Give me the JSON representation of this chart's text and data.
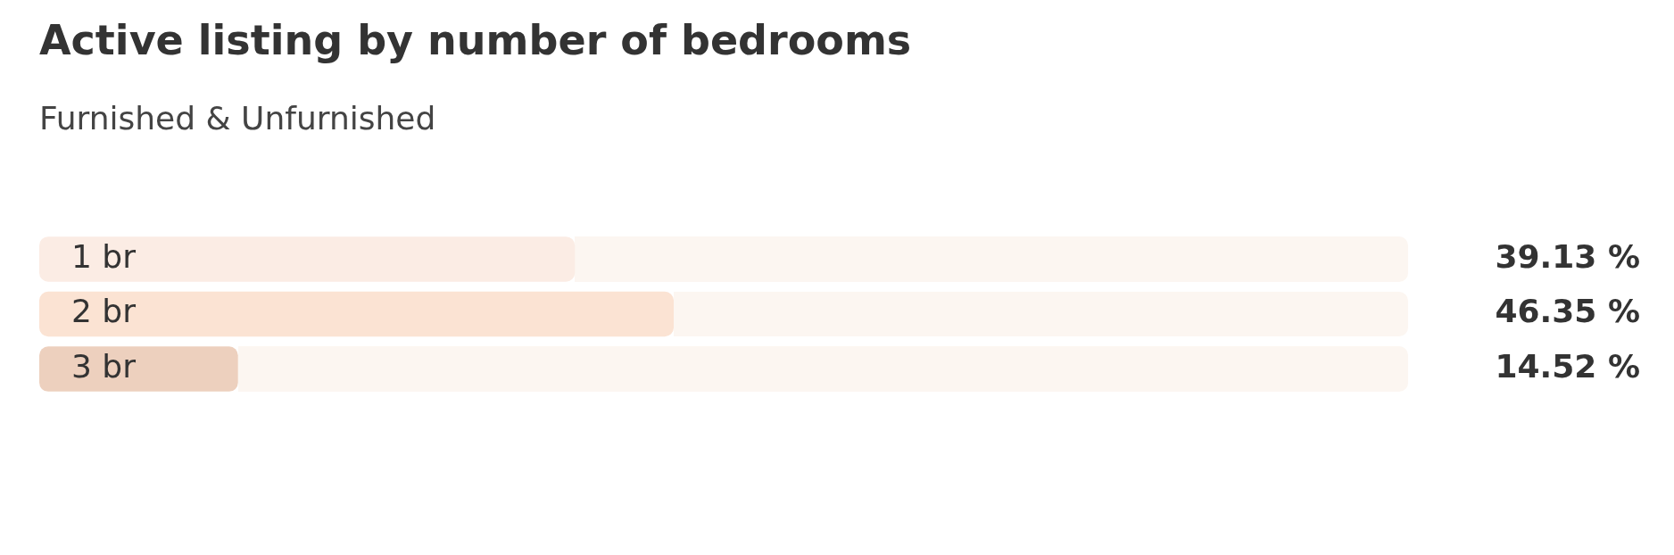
{
  "chart_data": {
    "type": "bar",
    "orientation": "horizontal",
    "title": "Active listing by number of bedrooms",
    "subtitle": "Furnished & Unfurnished",
    "categories": [
      "1 br",
      "2 br",
      "3 br"
    ],
    "values": [
      39.13,
      46.35,
      14.52
    ],
    "colors": [
      "#fbece4",
      "#fbe3d3",
      "#edd0be"
    ],
    "value_labels": [
      "39.13 %",
      "46.35 %",
      "14.52 %"
    ],
    "xlim": [
      0,
      100
    ],
    "tick_labels": "y",
    "grid": false,
    "legend": false
  }
}
